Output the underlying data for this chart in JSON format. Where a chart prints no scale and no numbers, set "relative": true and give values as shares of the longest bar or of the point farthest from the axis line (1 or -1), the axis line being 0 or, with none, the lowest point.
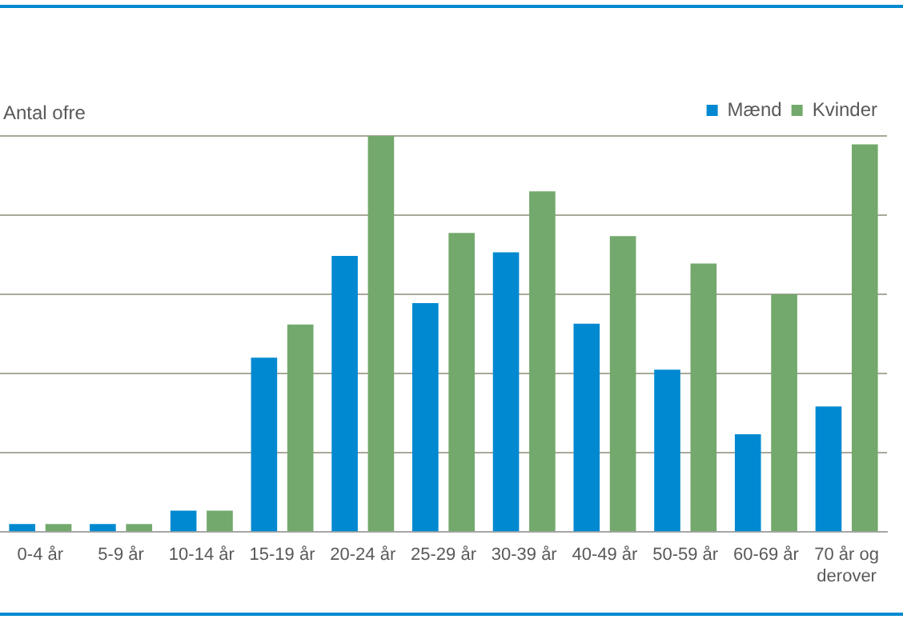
{
  "chart_data": {
    "type": "bar",
    "ylabel": "Antal ofre",
    "relative": true,
    "grid": "y",
    "legend": "top right",
    "categories": [
      "0-4 år",
      "5-9 år",
      "10-14 år",
      "15-19 år",
      "20-24 år",
      "25-29 år",
      "30-39 år",
      "40-49 år",
      "50-59 år",
      "60-69 år",
      "70 år og derover"
    ],
    "series": [
      {
        "name": "Mænd",
        "color": "#0089d1",
        "values": [
          0.02,
          0.02,
          0.054,
          0.44,
          0.697,
          0.578,
          0.706,
          0.526,
          0.41,
          0.247,
          0.317
        ]
      },
      {
        "name": "Kvinder",
        "color": "#73a96c",
        "values": [
          0.02,
          0.02,
          0.054,
          0.524,
          1,
          0.755,
          0.86,
          0.747,
          0.678,
          0.6,
          0.979
        ]
      }
    ]
  }
}
